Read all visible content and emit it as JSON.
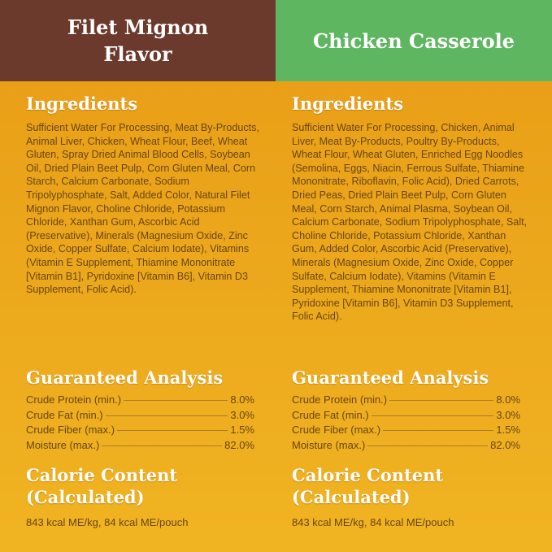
{
  "columns": [
    {
      "title": "Filet Mignon Flavor",
      "ingredients_heading": "Ingredients",
      "ingredients": "Sufficient Water For Processing, Meat By-Products, Animal Liver, Chicken, Wheat Flour, Beef, Wheat Gluten, Spray Dried Animal Blood Cells, Soybean Oil, Dried Plain Beet Pulp, Corn Gluten Meal, Corn Starch, Calcium Carbonate, Sodium Tripolyphosphate, Salt, Added Color, Natural Filet Mignon Flavor, Choline Chloride, Potassium Chloride, Xanthan Gum, Ascorbic Acid (Preservative), Minerals (Magnesium Oxide, Zinc Oxide, Copper Sulfate, Calcium Iodate), Vitamins (Vitamin E Supplement, Thiamine Mononitrate [Vitamin B1], Pyridoxine [Vitamin B6], Vitamin D3 Supplement, Folic Acid).",
      "analysis_heading": "Guaranteed Analysis",
      "analysis": [
        [
          "Crude Protein (min.)",
          "8.0%"
        ],
        [
          "Crude Fat (min.)",
          "3.0%"
        ],
        [
          "Crude Fiber (max.)",
          "1.5%"
        ],
        [
          "Moisture (max.)",
          "82.0%"
        ]
      ],
      "calorie_heading": "Calorie Content (Calculated)",
      "calorie": "843 kcal ME/kg, 84 kcal ME/pouch"
    },
    {
      "title": "Chicken Casserole",
      "ingredients_heading": "Ingredients",
      "ingredients": "Sufficient Water For Processing, Chicken, Animal Liver, Meat By-Products, Poultry By-Products, Wheat Flour, Wheat Gluten, Enriched Egg Noodles (Semolina, Eggs, Niacin, Ferrous Sulfate, Thiamine Mononitrate, Riboflavin, Folic Acid), Dried Carrots, Dried Peas, Dried Plain Beet Pulp, Corn Gluten Meal, Corn Starch, Animal Plasma, Soybean Oil, Calcium Carbonate, Sodium Tripolyphosphate, Salt, Choline Chloride, Potassium Chloride, Xanthan Gum, Added Color, Ascorbic Acid (Preservative), Minerals (Magnesium Oxide, Zinc Oxide, Copper Sulfate, Calcium Iodate), Vitamins (Vitamin E Supplement, Thiamine Mononitrate [Vitamin B1], Pyridoxine [Vitamin B6], Vitamin D3 Supplement, Folic Acid).",
      "analysis_heading": "Guaranteed Analysis",
      "analysis": [
        [
          "Crude Protein (min.)",
          "8.0%"
        ],
        [
          "Crude Fat (min.)",
          "3.0%"
        ],
        [
          "Crude Fiber (max.)",
          "1.5%"
        ],
        [
          "Moisture (max.)",
          "82.0%"
        ]
      ],
      "calorie_heading": "Calorie Content (Calculated)",
      "calorie": "843 kcal ME/kg, 84 kcal ME/pouch"
    }
  ]
}
